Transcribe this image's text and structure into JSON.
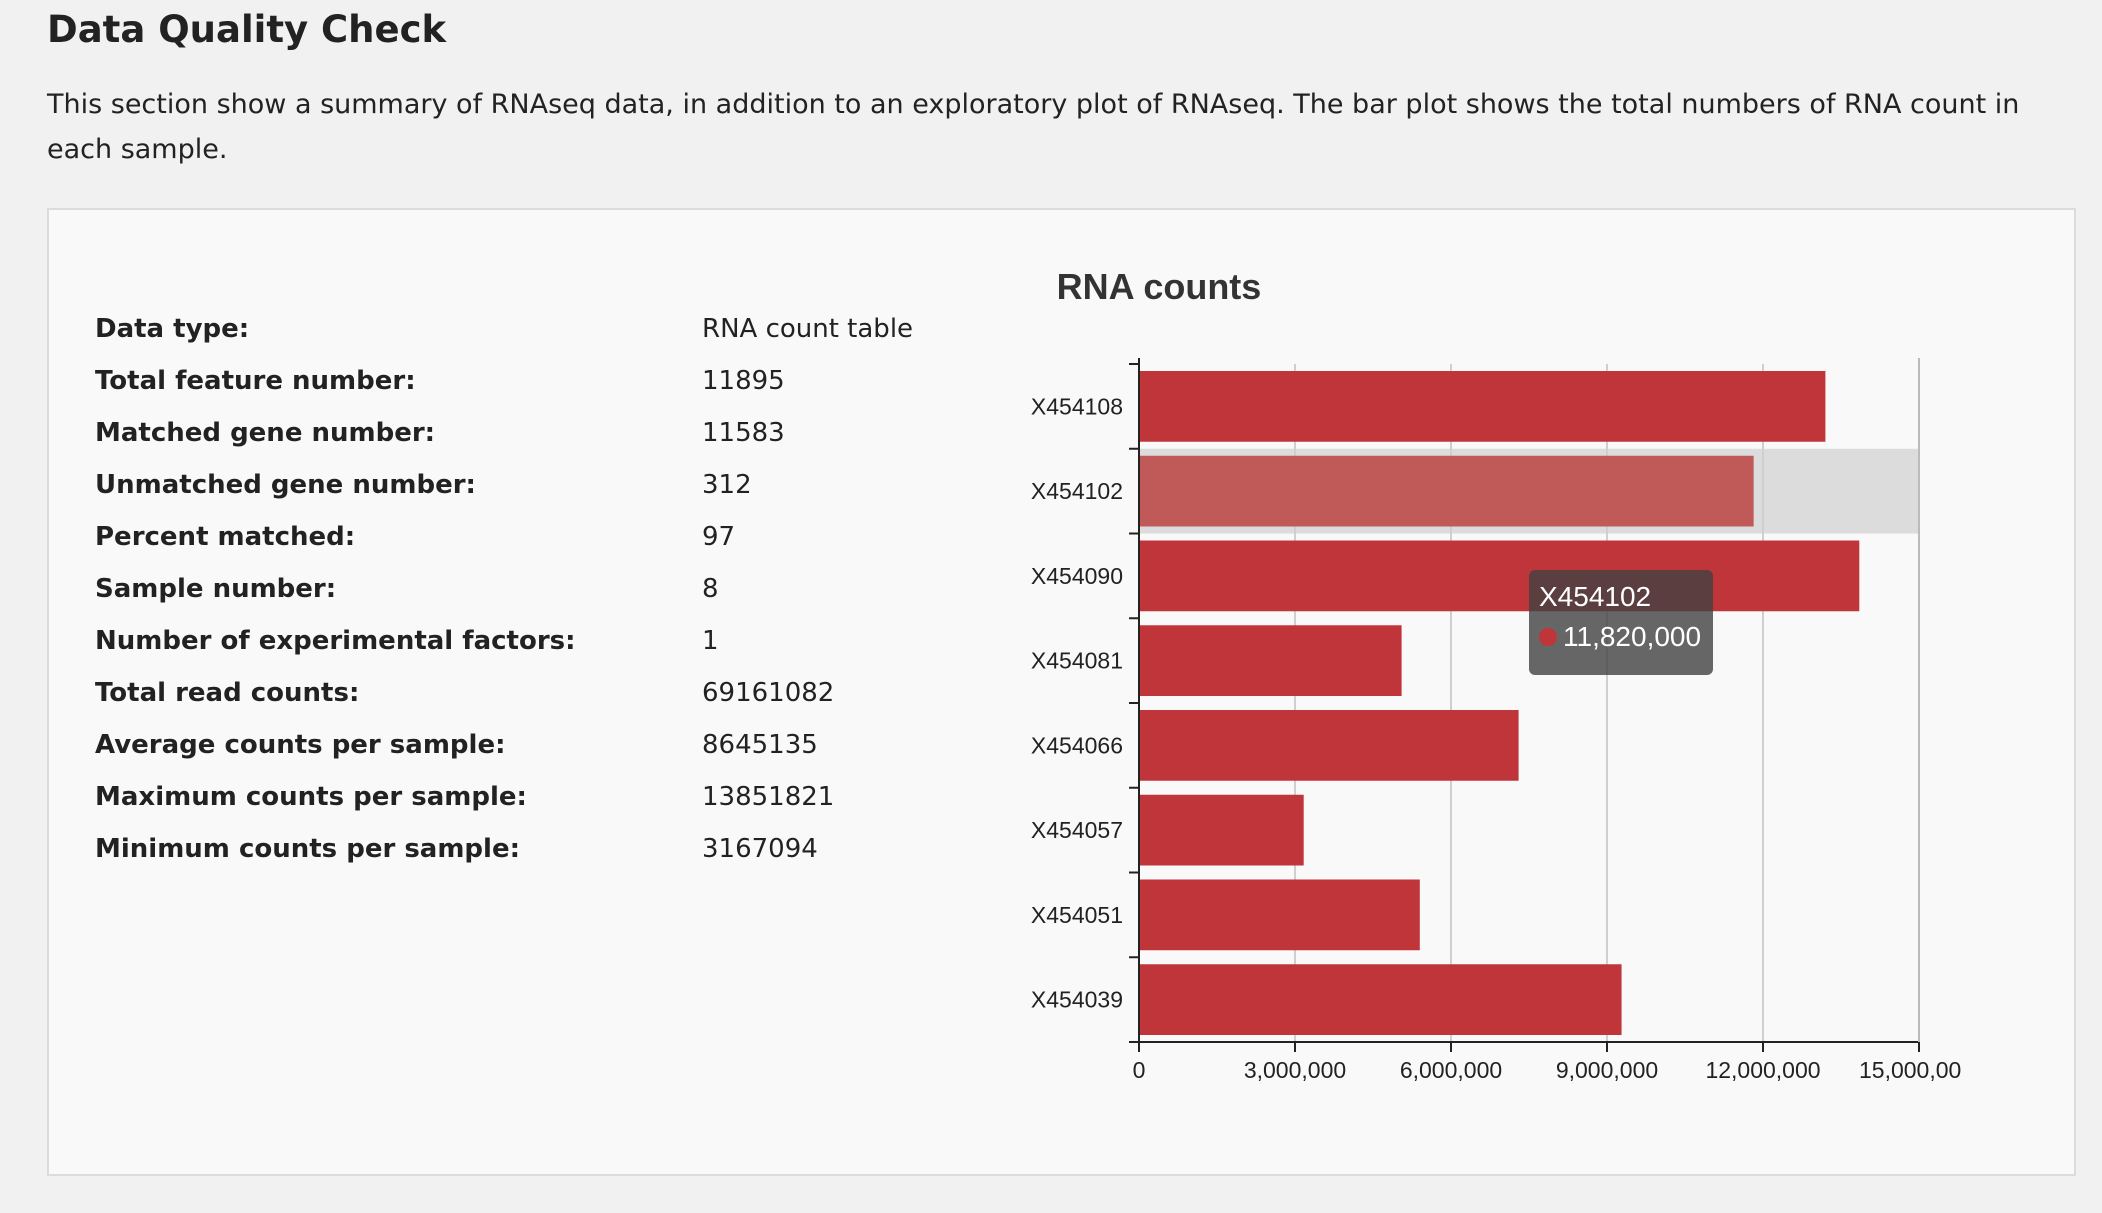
{
  "page": {
    "title": "Data Quality Check",
    "description": "This section show a summary of RNAseq data, in addition to an exploratory plot of RNAseq. The bar plot shows the total numbers of RNA count in each sample."
  },
  "summary": [
    {
      "label": "Data type:",
      "value": "RNA count table"
    },
    {
      "label": "Total feature number:",
      "value": "11895"
    },
    {
      "label": "Matched gene number:",
      "value": "11583"
    },
    {
      "label": "Unmatched gene number:",
      "value": "312"
    },
    {
      "label": "Percent matched:",
      "value": "97"
    },
    {
      "label": "Sample number:",
      "value": "8"
    },
    {
      "label": "Number of experimental factors:",
      "value": "1"
    },
    {
      "label": "Total read counts:",
      "value": "69161082"
    },
    {
      "label": "Average counts per sample:",
      "value": "8645135"
    },
    {
      "label": "Maximum counts per sample:",
      "value": "13851821"
    },
    {
      "label": "Minimum counts per sample:",
      "value": "3167094"
    }
  ],
  "chart_data": {
    "type": "bar",
    "orientation": "horizontal",
    "title": "RNA counts",
    "xlabel": "",
    "ylabel": "",
    "categories": [
      "X454108",
      "X454102",
      "X454090",
      "X454081",
      "X454066",
      "X454057",
      "X454051",
      "X454039"
    ],
    "values": [
      13200000,
      11820000,
      13851821,
      5050000,
      7300000,
      3167094,
      5400000,
      9280000
    ],
    "xlim": [
      0,
      15000000
    ],
    "ticks": [
      "0",
      "3,000,000",
      "6,000,000",
      "9,000,000",
      "12,000,000",
      "15,000,00"
    ],
    "grid": true,
    "bar_color": "#c0353a",
    "highlight_bar_color": "#c05a58",
    "highlight_band_color": "#dcdcdc",
    "highlighted_category": "X454102"
  },
  "tooltip": {
    "name": "X454102",
    "value": "11,820,000",
    "dot_color": "#c0353a"
  }
}
